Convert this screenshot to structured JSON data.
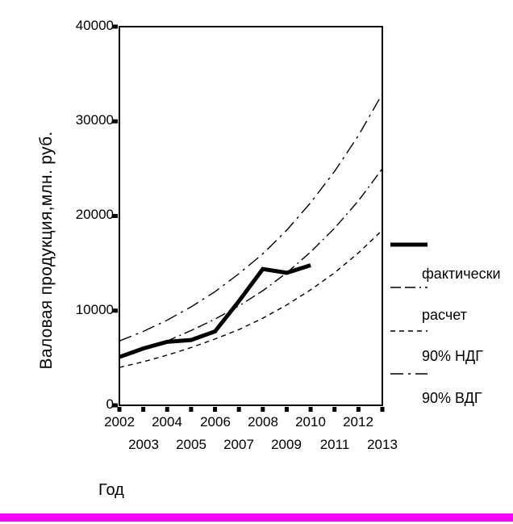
{
  "figure": {
    "y_axis_title": "Валовая продукция,млн. руб.",
    "x_axis_title": "Год",
    "y_tick_labels": [
      "40000",
      "30000",
      "20000",
      "10000",
      "0"
    ],
    "x_tick_labels_row1": [
      "2002",
      "2004",
      "2006",
      "2008",
      "2010",
      "2012"
    ],
    "x_tick_labels_row2": [
      "2003",
      "2005",
      "2007",
      "2009",
      "2011",
      "2013"
    ]
  },
  "legend": {
    "items": [
      {
        "label": "фактически",
        "style": "solid-thick"
      },
      {
        "label": "расчет",
        "style": "long-dash"
      },
      {
        "label": "90% НДГ",
        "style": "short-dash"
      },
      {
        "label": "90% ВДГ",
        "style": "dash-dot"
      }
    ]
  },
  "colors": {
    "line": "#000000",
    "accent_bar": "#FF00FF",
    "background": "#FFFFFF"
  },
  "chart_data": {
    "type": "line",
    "title": "",
    "xlabel": "Год",
    "ylabel": "Валовая продукция,млн. руб.",
    "xlim": [
      2002,
      2013
    ],
    "ylim": [
      0,
      40000
    ],
    "x_ticks": [
      2002,
      2003,
      2004,
      2005,
      2006,
      2007,
      2008,
      2009,
      2010,
      2011,
      2012,
      2013
    ],
    "y_ticks": [
      0,
      10000,
      20000,
      30000,
      40000
    ],
    "grid": false,
    "legend_position": "right",
    "series": [
      {
        "name": "фактически",
        "style": "solid-thick",
        "x": [
          2002,
          2003,
          2004,
          2005,
          2006,
          2007,
          2008,
          2009,
          2010
        ],
        "values": [
          5100,
          6000,
          6700,
          6900,
          7800,
          11000,
          14400,
          14000,
          14800
        ]
      },
      {
        "name": "расчет",
        "style": "long-dash",
        "x": [
          2002,
          2003,
          2004,
          2005,
          2006,
          2007,
          2008,
          2009,
          2010,
          2011,
          2012,
          2013
        ],
        "values": [
          5100,
          5900,
          6800,
          7900,
          9100,
          10500,
          12100,
          14000,
          16200,
          18700,
          21600,
          25000
        ]
      },
      {
        "name": "90% НДГ",
        "style": "short-dash",
        "x": [
          2002,
          2003,
          2004,
          2005,
          2006,
          2007,
          2008,
          2009,
          2010,
          2011,
          2012,
          2013
        ],
        "values": [
          4000,
          4600,
          5300,
          6100,
          7000,
          8000,
          9200,
          10600,
          12200,
          14000,
          16100,
          18500
        ]
      },
      {
        "name": "90% ВДГ",
        "style": "dash-dot",
        "x": [
          2002,
          2003,
          2004,
          2005,
          2006,
          2007,
          2008,
          2009,
          2010,
          2011,
          2012,
          2013
        ],
        "values": [
          6800,
          7800,
          9000,
          10400,
          12000,
          13900,
          16000,
          18500,
          21400,
          24700,
          28500,
          32900
        ]
      }
    ]
  }
}
